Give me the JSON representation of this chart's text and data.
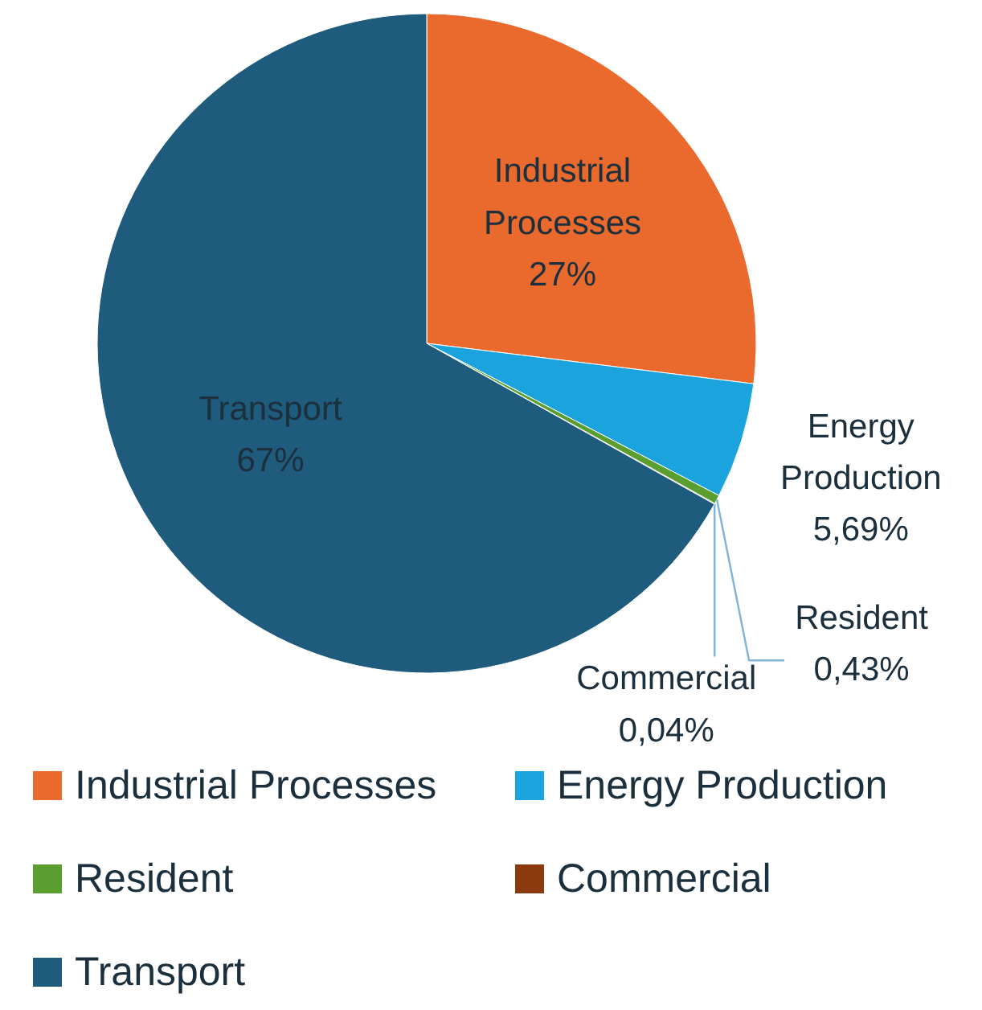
{
  "chart_data": {
    "type": "pie",
    "categories": [
      "Industrial Processes",
      "Energy Production",
      "Resident",
      "Commercial",
      "Transport"
    ],
    "values": [
      27,
      5.69,
      0.43,
      0.04,
      67
    ],
    "value_labels": [
      "27%",
      "5,69%",
      "0,43%",
      "0,04%",
      "67%"
    ],
    "colors": [
      "#e96a2c",
      "#1aa3dc",
      "#5a9e2f",
      "#8b3a10",
      "#1f5b7c"
    ],
    "legend": "bottom"
  }
}
